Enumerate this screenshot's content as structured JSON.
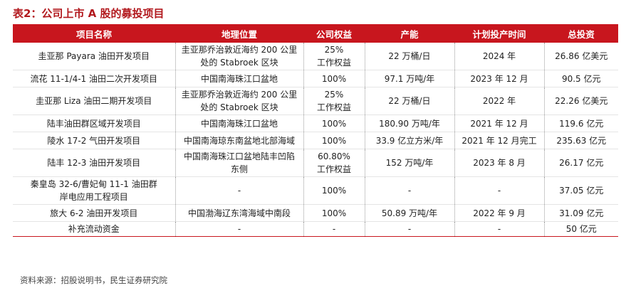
{
  "title": "表2：公司上市 A 股的募投项目",
  "headers": [
    "项目名称",
    "地理位置",
    "公司权益",
    "产能",
    "计划投产时间",
    "总投资"
  ],
  "rows": [
    {
      "name": [
        "圭亚那 Payara 油田开发项目"
      ],
      "location": [
        "圭亚那乔治敦近海约 200 公里",
        "处的 Stabroek 区块"
      ],
      "equity": [
        "25%",
        "工作权益"
      ],
      "capacity": [
        "22 万桶/日"
      ],
      "time": [
        "2024 年"
      ],
      "investment": [
        "26.86 亿美元"
      ]
    },
    {
      "name": [
        "流花 11-1/4-1 油田二次开发项目"
      ],
      "location": [
        "中国南海珠江口盆地"
      ],
      "equity": [
        "100%"
      ],
      "capacity": [
        "97.1 万吨/年"
      ],
      "time": [
        "2023 年 12 月"
      ],
      "investment": [
        "90.5 亿元"
      ]
    },
    {
      "name": [
        "圭亚那 Liza 油田二期开发项目"
      ],
      "location": [
        "圭亚那乔治敦近海约 200 公里",
        "处的 Stabroek 区块"
      ],
      "equity": [
        "25%",
        "工作权益"
      ],
      "capacity": [
        "22 万桶/日"
      ],
      "time": [
        "2022 年"
      ],
      "investment": [
        "22.26 亿美元"
      ]
    },
    {
      "name": [
        "陆丰油田群区域开发项目"
      ],
      "location": [
        "中国南海珠江口盆地"
      ],
      "equity": [
        "100%"
      ],
      "capacity": [
        "180.90 万吨/年"
      ],
      "time": [
        "2021 年 12 月"
      ],
      "investment": [
        "119.6 亿元"
      ]
    },
    {
      "name": [
        "陵水 17-2 气田开发项目"
      ],
      "location": [
        "中国南海琼东南盆地北部海域"
      ],
      "equity": [
        "100%"
      ],
      "capacity": [
        "33.9 亿立方米/年"
      ],
      "time": [
        "2021 年 12 月完工"
      ],
      "investment": [
        "235.63 亿元"
      ]
    },
    {
      "name": [
        "陆丰 12-3 油田开发项目"
      ],
      "location": [
        "中国南海珠江口盆地陆丰凹陷",
        "东侧"
      ],
      "equity": [
        "60.80%",
        "工作权益"
      ],
      "capacity": [
        "152 万吨/年"
      ],
      "time": [
        "2023 年 8 月"
      ],
      "investment": [
        "26.17 亿元"
      ]
    },
    {
      "name": [
        "秦皇岛 32-6/曹妃甸 11-1 油田群",
        "岸电应用工程项目"
      ],
      "location": [
        "-"
      ],
      "equity": [
        "100%"
      ],
      "capacity": [
        "-"
      ],
      "time": [
        "-"
      ],
      "investment": [
        "37.05 亿元"
      ]
    },
    {
      "name": [
        "旅大 6-2 油田开发项目"
      ],
      "location": [
        "中国渤海辽东湾海域中南段"
      ],
      "equity": [
        "100%"
      ],
      "capacity": [
        "50.89 万吨/年"
      ],
      "time": [
        "2022 年 9 月"
      ],
      "investment": [
        "31.09 亿元"
      ]
    },
    {
      "name": [
        "补充流动资金"
      ],
      "location": [
        "-"
      ],
      "equity": [
        "-"
      ],
      "capacity": [
        "-"
      ],
      "time": [
        "-"
      ],
      "investment": [
        "50 亿元"
      ]
    }
  ],
  "source": "资料来源：招股说明书，民生证券研究院"
}
